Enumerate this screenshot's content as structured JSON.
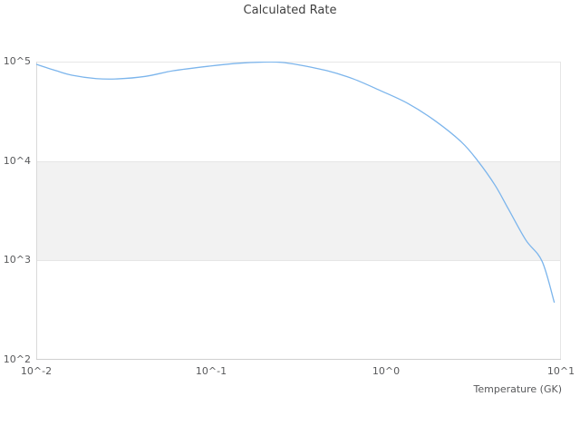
{
  "title": "Calculated Rate",
  "x_axis": {
    "label": "Temperature (GK)",
    "ticks": [
      "10^-2",
      "10^-1",
      "10^0",
      "10^1"
    ]
  },
  "y_axis": {
    "ticks": [
      "10^5",
      "10^4",
      "10^3",
      "10^2"
    ]
  },
  "colors": {
    "line": "#7cb5ec",
    "plot_band": "#f2f2f2",
    "gridline": "#e6e6e6",
    "axis_line": "#d0d0d0",
    "tick_text": "#58595b",
    "title_text": "#3f3f3f"
  },
  "chart_data": {
    "type": "line",
    "title": "Calculated Rate",
    "xlabel": "Temperature (GK)",
    "ylabel": "",
    "x_scale": "log",
    "y_scale": "log",
    "xlim": [
      0.01,
      10
    ],
    "ylim": [
      100,
      100000
    ],
    "grid": "horizontal-only",
    "legend": "none",
    "plot_band": {
      "axis": "y",
      "from": 1000,
      "to": 10000,
      "color": "#f2f2f2"
    },
    "series": [
      {
        "name": "Calculated Rate",
        "color": "#7cb5ec",
        "points": [
          [
            0.01,
            94000
          ],
          [
            0.013,
            81000
          ],
          [
            0.016,
            73000
          ],
          [
            0.022,
            67500
          ],
          [
            0.029,
            67000
          ],
          [
            0.042,
            71000
          ],
          [
            0.061,
            81000
          ],
          [
            0.1,
            90500
          ],
          [
            0.14,
            96000
          ],
          [
            0.2,
            99000
          ],
          [
            0.25,
            98500
          ],
          [
            0.32,
            92500
          ],
          [
            0.46,
            81000
          ],
          [
            0.65,
            67000
          ],
          [
            0.93,
            51000
          ],
          [
            1.33,
            38000
          ],
          [
            1.9,
            25500
          ],
          [
            2.7,
            15500
          ],
          [
            3.35,
            10000
          ],
          [
            4.2,
            5700
          ],
          [
            5.0,
            3300
          ],
          [
            6.3,
            1600
          ],
          [
            7.8,
            980
          ],
          [
            9.15,
            380
          ]
        ]
      }
    ]
  }
}
